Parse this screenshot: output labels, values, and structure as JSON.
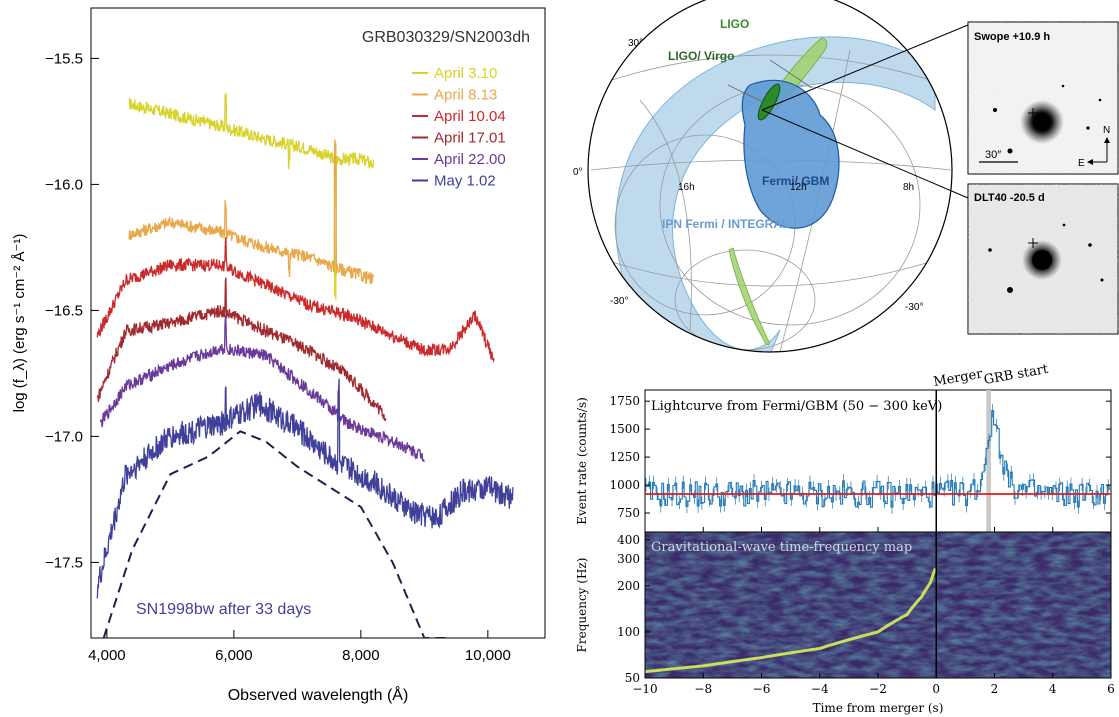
{
  "chart_data": [
    {
      "type": "line",
      "title": "GRB030329/SN2003dh",
      "xlabel": "Observed wavelength (Å)",
      "ylabel": "log (f_λ) (erg s⁻¹ cm⁻² Å⁻¹)",
      "xlim": [
        3750,
        10900
      ],
      "ylim": [
        -17.8,
        -15.3
      ],
      "x_ticks": [
        4000,
        6000,
        8000,
        10000
      ],
      "x_tick_labels": [
        "4,000",
        "6,000",
        "8,000",
        "10,000"
      ],
      "y_ticks": [
        -15.5,
        -16.0,
        -16.5,
        -17.0,
        -17.5
      ],
      "y_tick_labels": [
        "−15.5",
        "−16.0",
        "−16.5",
        "−17.0",
        "−17.5"
      ],
      "legend_position": "top-right",
      "annotation": "SN1998bw after 33 days",
      "series": [
        {
          "name": "April 3.10",
          "color": "#d9d22a",
          "x": [
            4350,
            5000,
            5800,
            6500,
            7200,
            7600,
            8000,
            8200
          ],
          "values": [
            -15.68,
            -15.72,
            -15.77,
            -15.82,
            -15.86,
            -15.9,
            -15.9,
            -15.92
          ]
        },
        {
          "name": "April 8.13",
          "color": "#e8a84a",
          "x": [
            4350,
            5000,
            5800,
            6500,
            7200,
            7600,
            8000,
            8200
          ],
          "values": [
            -16.2,
            -16.15,
            -16.19,
            -16.25,
            -16.29,
            -16.33,
            -16.36,
            -16.38
          ]
        },
        {
          "name": "April 10.04",
          "color": "#cc2a2a",
          "x": [
            3850,
            4300,
            5000,
            5800,
            6500,
            7200,
            7800,
            8500,
            9000,
            9400,
            9800,
            10100
          ],
          "values": [
            -16.6,
            -16.38,
            -16.32,
            -16.32,
            -16.4,
            -16.48,
            -16.52,
            -16.6,
            -16.66,
            -16.65,
            -16.52,
            -16.7
          ]
        },
        {
          "name": "April 17.01",
          "color": "#a12a30",
          "x": [
            3850,
            4300,
            5000,
            5800,
            6500,
            7200,
            7800,
            8400
          ],
          "values": [
            -16.85,
            -16.58,
            -16.55,
            -16.5,
            -16.58,
            -16.66,
            -16.76,
            -16.92
          ]
        },
        {
          "name": "April 22.00",
          "color": "#6a3a9a",
          "x": [
            3900,
            4300,
            5000,
            5800,
            6500,
            7200,
            7800,
            8600,
            9000
          ],
          "values": [
            -16.95,
            -16.8,
            -16.72,
            -16.65,
            -16.68,
            -16.82,
            -16.95,
            -17.03,
            -17.08
          ]
        },
        {
          "name": "May 1.02",
          "color": "#40409a",
          "x": [
            3850,
            4300,
            5000,
            5800,
            6400,
            7000,
            7600,
            8200,
            8800,
            9200,
            9600,
            10000,
            10400
          ],
          "values": [
            -17.6,
            -17.15,
            -17.0,
            -16.95,
            -16.87,
            -16.97,
            -17.1,
            -17.18,
            -17.3,
            -17.32,
            -17.22,
            -17.2,
            -17.25
          ]
        },
        {
          "x": [
            3950,
            4400,
            5000,
            5600,
            6100,
            6500,
            7000,
            7500,
            8000,
            8500,
            9000,
            9400
          ],
          "values": [
            -17.8,
            -17.45,
            -17.15,
            -17.08,
            -16.98,
            -17.02,
            -17.12,
            -17.2,
            -17.28,
            -17.5,
            -17.8,
            -17.8
          ]
        }
      ]
    },
    {
      "type": "other",
      "title": "",
      "labels": {
        "ligo": "LIGO",
        "ligo_virgo": "LIGO/ Virgo",
        "fermi_gbm": "Fermi/ GBM",
        "ipn": "IPN Fermi / INTEGRAL",
        "dec_30": "30°",
        "dec_0": "0°",
        "dec_m30_left": "-30°",
        "dec_m30_right": "-30°",
        "ra_16h": "16h",
        "ra_12h": "12h",
        "ra_8h": "8h"
      },
      "colors": {
        "ipn": "#a9cde6",
        "gbm": "#5e9ad3",
        "ligo": "#9ed06d",
        "ligo_virgo": "#2b8a2b"
      }
    },
    {
      "type": "other",
      "panels": [
        {
          "title": "Swope +10.9 h",
          "scale_label": "30″",
          "north": "N",
          "east": "E"
        },
        {
          "title": "DLT40 -20.5 d"
        }
      ]
    },
    {
      "type": "line",
      "title": "Lightcurve from Fermi/GBM (50 − 300 keV)",
      "ylabel": "Event rate (counts/s)",
      "xlim": [
        -10,
        6
      ],
      "ylim": [
        580,
        1850
      ],
      "y_ticks": [
        750,
        1000,
        1250,
        1500,
        1750
      ],
      "background_level": 920,
      "markers": [
        "Merger",
        "GRB start"
      ],
      "series": [
        {
          "color": "#1f77b4",
          "x": [
            -10,
            -8,
            -6,
            -4,
            -2,
            -1,
            0,
            1,
            1.5,
            1.8,
            2.0,
            2.2,
            2.5,
            3,
            4,
            5,
            6
          ],
          "values": [
            920,
            920,
            920,
            920,
            920,
            920,
            920,
            930,
            1000,
            1500,
            1600,
            1300,
            1000,
            950,
            920,
            920,
            920
          ]
        }
      ]
    },
    {
      "type": "heatmap",
      "title": "Gravitational-wave time-frequency map",
      "ylabel": "Frequency (Hz)",
      "xlabel": "Time from merger (s)",
      "xlim": [
        -10,
        6
      ],
      "ylim": [
        50,
        450
      ],
      "y_scale": "log",
      "x_ticks": [
        -10,
        -8,
        -6,
        -4,
        -2,
        0,
        2,
        4,
        6
      ],
      "y_ticks": [
        50,
        100,
        200,
        300,
        400
      ],
      "chirp": {
        "x": [
          -10,
          -8,
          -6,
          -4,
          -2,
          -1,
          -0.5,
          -0.2,
          0
        ],
        "values": [
          55,
          60,
          68,
          78,
          100,
          130,
          170,
          210,
          270
        ]
      }
    }
  ]
}
